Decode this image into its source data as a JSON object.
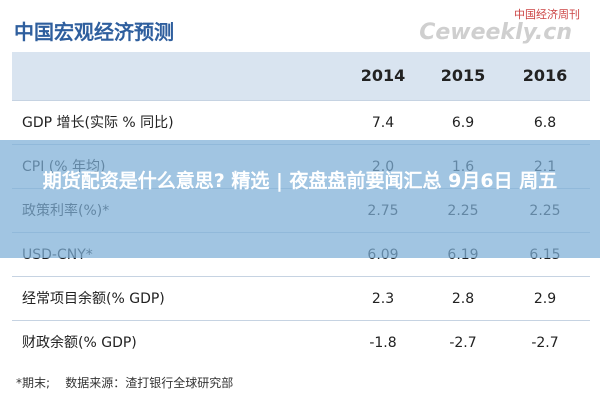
{
  "header": {
    "title": "中国宏观经济预测",
    "logo": "中国经济周刊",
    "logo_sub": "Ceweekly.cn"
  },
  "table": {
    "columns": [
      "2014",
      "2015",
      "2016"
    ],
    "rows": [
      [
        "GDP 增长(实际 % 同比)",
        "7.4",
        "6.9",
        "6.8"
      ],
      [
        "CPI (% 年均)",
        "2.0",
        "1.6",
        "2.1"
      ],
      [
        "政策利率(%)*",
        "2.75",
        "2.25",
        "2.25"
      ],
      [
        "USD-CNY*",
        "6.09",
        "6.19",
        "6.15"
      ],
      [
        "经常项目余额(% GDP)",
        "2.3",
        "2.8",
        "2.9"
      ],
      [
        "财政余额(% GDP)",
        "-1.8",
        "-2.7",
        "-2.7"
      ]
    ]
  },
  "footnote": "*期末;    数据来源：渣打银行全球研究部",
  "banner": "期货配资是什么意思? 精选 | 夜盘盘前要闻汇总 9月6日 周五"
}
